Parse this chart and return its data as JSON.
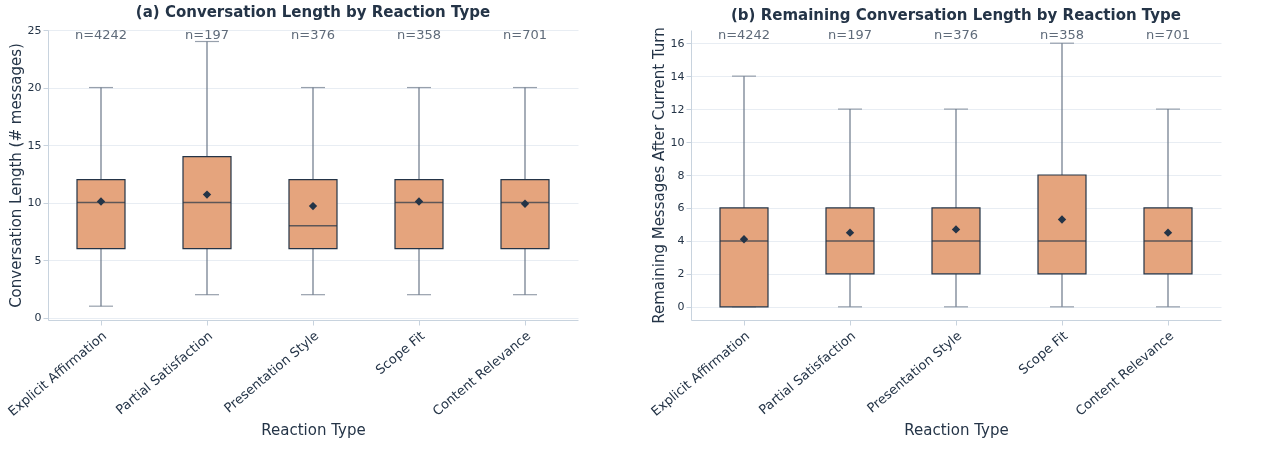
{
  "chart_data": [
    {
      "type": "box",
      "title": "(a) Conversation Length by Reaction Type",
      "xlabel": "Reaction Type",
      "ylabel": "Conversation Length (# messages)",
      "categories": [
        "Explicit Affirmation",
        "Partial Satisfaction",
        "Presentation Style",
        "Scope Fit",
        "Content Relevance"
      ],
      "ylim": [
        -0.2,
        25
      ],
      "yticks": [
        0,
        5,
        10,
        15,
        20,
        25
      ],
      "grid": "y",
      "marker": "diamond",
      "series": [
        {
          "color": "#e5a47d",
          "boxes": [
            {
              "low": 1,
              "q1": 6,
              "median": 10,
              "q3": 12,
              "high": 20,
              "mean": 10.1
            },
            {
              "low": 2,
              "q1": 6,
              "median": 10,
              "q3": 14,
              "high": 24,
              "mean": 10.7
            },
            {
              "low": 2,
              "q1": 6,
              "median": 8,
              "q3": 12,
              "high": 20,
              "mean": 9.7
            },
            {
              "low": 2,
              "q1": 6,
              "median": 10,
              "q3": 12,
              "high": 20,
              "mean": 10.1
            },
            {
              "low": 2,
              "q1": 6,
              "median": 10,
              "q3": 12,
              "high": 20,
              "mean": 9.9
            }
          ]
        }
      ],
      "annotations": [
        "n=4242",
        "n=197",
        "n=376",
        "n=358",
        "n=701"
      ]
    },
    {
      "type": "box",
      "title": "(b) Remaining Conversation Length by Reaction Type",
      "xlabel": "Reaction Type",
      "ylabel": "Remaining Messages After Current Turn",
      "categories": [
        "Explicit Affirmation",
        "Partial Satisfaction",
        "Presentation Style",
        "Scope Fit",
        "Content Relevance"
      ],
      "ylim": [
        -0.8,
        16.8
      ],
      "yticks": [
        0,
        2,
        4,
        6,
        8,
        10,
        12,
        14,
        16
      ],
      "grid": "y",
      "marker": "diamond",
      "series": [
        {
          "color": "#e5a47d",
          "boxes": [
            {
              "low": 0,
              "q1": 0,
              "median": 4,
              "q3": 6,
              "high": 14,
              "mean": 4.1
            },
            {
              "low": 0,
              "q1": 2,
              "median": 4,
              "q3": 6,
              "high": 12,
              "mean": 4.5
            },
            {
              "low": 0,
              "q1": 2,
              "median": 4,
              "q3": 6,
              "high": 12,
              "mean": 4.7
            },
            {
              "low": 0,
              "q1": 2,
              "median": 4,
              "q3": 8,
              "high": 16,
              "mean": 5.3
            },
            {
              "low": 0,
              "q1": 2,
              "median": 4,
              "q3": 6,
              "high": 12,
              "mean": 4.5
            }
          ]
        }
      ],
      "annotations": [
        "n=4242",
        "n=197",
        "n=376",
        "n=358",
        "n=701"
      ]
    }
  ]
}
